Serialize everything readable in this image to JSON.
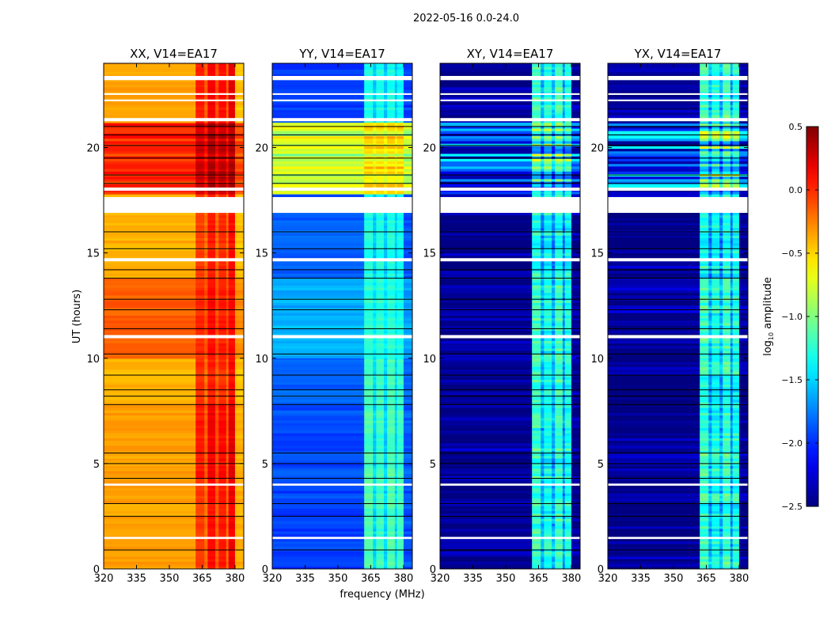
{
  "chart_data": {
    "type": "heatmap",
    "suptitle": "2022-05-16 0.0-24.0",
    "xlabel": "frequency (MHz)",
    "ylabel": "UT (hours)",
    "xlim": [
      320,
      384
    ],
    "ylim": [
      0,
      24
    ],
    "xticks": [
      320,
      335,
      350,
      365,
      380
    ],
    "yticks": [
      0,
      5,
      10,
      15,
      20
    ],
    "colorbar": {
      "label_prefix": "log",
      "label_sub": "10",
      "label_suffix": " amplitude",
      "range": [
        -2.5,
        0.5
      ],
      "ticks": [
        "0.5",
        "0.0",
        "−0.5",
        "−1.0",
        "−1.5",
        "−2.0",
        "−2.5"
      ],
      "tick_values": [
        0.5,
        0.0,
        -0.5,
        -1.0,
        -1.5,
        -2.0,
        -2.5
      ],
      "colormap": "jet"
    },
    "freq_bands_mhz": [
      [
        320,
        362
      ],
      [
        362,
        366
      ],
      [
        366,
        367.5
      ],
      [
        367.5,
        371
      ],
      [
        371,
        372.5
      ],
      [
        372.5,
        376
      ],
      [
        376,
        377
      ],
      [
        377,
        380
      ],
      [
        380,
        384
      ]
    ],
    "time_bands_hours": [
      [
        0,
        4.3
      ],
      [
        4.3,
        7.8
      ],
      [
        7.8,
        10
      ],
      [
        10,
        13.8
      ],
      [
        13.8,
        17.8
      ],
      [
        17.8,
        21.2
      ],
      [
        21.2,
        24
      ]
    ],
    "flagged_hours": [
      [
        1.42,
        1.52
      ],
      [
        3.95,
        4.05
      ],
      [
        10.95,
        11.1
      ],
      [
        14.6,
        14.75
      ],
      [
        16.9,
        17.65
      ],
      [
        17.95,
        18.1
      ],
      [
        21.25,
        21.4
      ],
      [
        22.2,
        22.28
      ],
      [
        22.5,
        22.58
      ],
      [
        23.2,
        23.4
      ]
    ],
    "black_lines_hours": [
      0.9,
      2.5,
      3.1,
      4.3,
      5.0,
      5.5,
      7.8,
      8.2,
      8.5,
      9.2,
      10.2,
      11.4,
      12.3,
      12.8,
      13.8,
      14.2,
      15.2,
      16.0,
      18.3,
      18.7,
      19.5,
      20.1,
      20.6,
      21.0
    ],
    "panels": [
      {
        "title": "XX, V14=EA17",
        "noise": 0.15,
        "levels": [
          [
            -0.35,
            -0.05,
            -0.2,
            0.1,
            -0.15,
            0.05,
            -0.2,
            0.15,
            -0.4
          ],
          [
            -0.35,
            0.05,
            -0.15,
            0.15,
            -0.1,
            0.1,
            -0.15,
            0.2,
            -0.4
          ],
          [
            -0.4,
            0.0,
            -0.2,
            0.05,
            -0.15,
            0.0,
            -0.2,
            0.1,
            -0.45
          ],
          [
            -0.15,
            0.0,
            -0.1,
            0.1,
            -0.1,
            0.05,
            -0.1,
            0.1,
            -0.3
          ],
          [
            -0.4,
            -0.05,
            -0.2,
            0.05,
            -0.2,
            0.0,
            -0.2,
            0.1,
            -0.45
          ],
          [
            0.0,
            0.25,
            0.1,
            0.35,
            0.15,
            0.3,
            0.1,
            0.35,
            -0.1
          ],
          [
            -0.35,
            0.05,
            -0.15,
            0.15,
            -0.1,
            0.1,
            -0.15,
            0.2,
            -0.45
          ]
        ]
      },
      {
        "title": "YY, V14=EA17",
        "noise": 0.25,
        "levels": [
          [
            -1.95,
            -1.15,
            -1.5,
            -1.2,
            -1.5,
            -1.15,
            -1.5,
            -1.2,
            -1.9
          ],
          [
            -1.9,
            -1.15,
            -1.5,
            -1.2,
            -1.5,
            -1.15,
            -1.5,
            -1.2,
            -1.85
          ],
          [
            -1.85,
            -1.2,
            -1.5,
            -1.2,
            -1.5,
            -1.2,
            -1.5,
            -1.25,
            -1.85
          ],
          [
            -1.6,
            -1.25,
            -1.4,
            -1.25,
            -1.4,
            -1.25,
            -1.4,
            -1.3,
            -1.65
          ],
          [
            -1.85,
            -1.3,
            -1.55,
            -1.3,
            -1.55,
            -1.3,
            -1.55,
            -1.35,
            -1.9
          ],
          [
            -0.8,
            -0.6,
            -0.7,
            -0.6,
            -0.7,
            -0.6,
            -0.7,
            -0.6,
            -0.85
          ],
          [
            -1.95,
            -1.3,
            -1.55,
            -1.3,
            -1.55,
            -1.3,
            -1.55,
            -1.35,
            -1.95
          ]
        ]
      },
      {
        "title": "XY, V14=EA17",
        "noise": 0.6,
        "levels": [
          [
            -2.45,
            -1.2,
            -1.6,
            -1.3,
            -1.6,
            -1.2,
            -1.7,
            -1.3,
            -2.45
          ],
          [
            -2.45,
            -1.2,
            -1.6,
            -1.3,
            -1.6,
            -1.2,
            -1.7,
            -1.3,
            -2.45
          ],
          [
            -2.45,
            -1.2,
            -1.6,
            -1.3,
            -1.6,
            -1.2,
            -1.7,
            -1.3,
            -2.45
          ],
          [
            -2.45,
            -1.2,
            -1.6,
            -1.3,
            -1.6,
            -1.2,
            -1.7,
            -1.3,
            -2.45
          ],
          [
            -2.45,
            -1.3,
            -1.7,
            -1.35,
            -1.7,
            -1.3,
            -1.75,
            -1.35,
            -2.45
          ],
          [
            -1.9,
            -1.2,
            -1.6,
            -1.2,
            -1.6,
            -1.2,
            -1.6,
            -1.3,
            -1.9
          ],
          [
            -2.45,
            -1.2,
            -1.6,
            -1.3,
            -1.6,
            -1.2,
            -1.7,
            -1.3,
            -2.45
          ]
        ]
      },
      {
        "title": "YX, V14=EA17",
        "noise": 0.6,
        "levels": [
          [
            -2.45,
            -1.2,
            -1.6,
            -1.3,
            -1.6,
            -1.2,
            -1.7,
            -1.3,
            -2.45
          ],
          [
            -2.45,
            -1.2,
            -1.6,
            -1.3,
            -1.6,
            -1.2,
            -1.7,
            -1.3,
            -2.45
          ],
          [
            -2.45,
            -1.2,
            -1.6,
            -1.3,
            -1.6,
            -1.2,
            -1.7,
            -1.3,
            -2.45
          ],
          [
            -2.45,
            -1.2,
            -1.6,
            -1.3,
            -1.6,
            -1.2,
            -1.7,
            -1.3,
            -2.45
          ],
          [
            -2.45,
            -1.3,
            -1.7,
            -1.35,
            -1.7,
            -1.3,
            -1.75,
            -1.35,
            -2.45
          ],
          [
            -1.9,
            -1.2,
            -1.6,
            -1.2,
            -1.6,
            -1.2,
            -1.6,
            -1.3,
            -1.9
          ],
          [
            -2.45,
            -1.2,
            -1.6,
            -1.3,
            -1.6,
            -1.2,
            -1.7,
            -1.3,
            -2.45
          ]
        ]
      }
    ]
  }
}
